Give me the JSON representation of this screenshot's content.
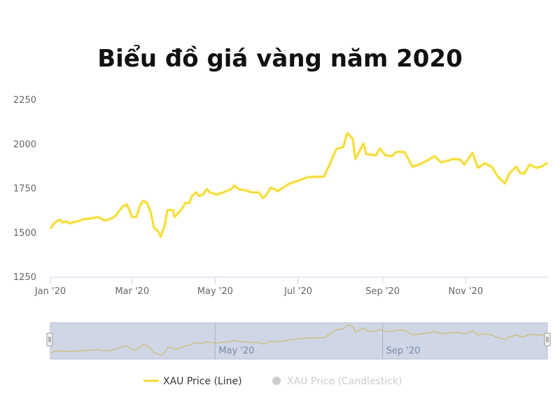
{
  "chart_data": {
    "type": "line",
    "title": "Biểu đồ giá vàng năm 2020",
    "xlabel": "",
    "ylabel": "",
    "xlim": [
      "2020-01-01",
      "2020-12-31"
    ],
    "ylim": [
      1250,
      2250
    ],
    "y_ticks": [
      1250,
      1500,
      1750,
      2000,
      2250
    ],
    "x_ticks": [
      {
        "date": "2020-01-01",
        "label": "Jan '20"
      },
      {
        "date": "2020-03-01",
        "label": "Mar '20"
      },
      {
        "date": "2020-05-01",
        "label": "May '20"
      },
      {
        "date": "2020-07-01",
        "label": "Jul '20"
      },
      {
        "date": "2020-09-01",
        "label": "Sep '20"
      },
      {
        "date": "2020-11-01",
        "label": "Nov '20"
      }
    ],
    "navigator_ticks": [
      {
        "date": "2020-05-01",
        "label": "May '20"
      },
      {
        "date": "2020-09-01",
        "label": "Sep '20"
      }
    ],
    "grid": false,
    "legend_placement": "bottom",
    "series": [
      {
        "name": "XAU Price (Line)",
        "color": "#f2d82e",
        "visible": true,
        "points": [
          [
            "2020-01-01",
            1519
          ],
          [
            "2020-01-04",
            1554
          ],
          [
            "2020-01-08",
            1570
          ],
          [
            "2020-01-10",
            1554
          ],
          [
            "2020-01-13",
            1562
          ],
          [
            "2020-01-15",
            1550
          ],
          [
            "2020-01-21",
            1562
          ],
          [
            "2020-01-26",
            1574
          ],
          [
            "2020-01-31",
            1578
          ],
          [
            "2020-02-05",
            1586
          ],
          [
            "2020-02-10",
            1566
          ],
          [
            "2020-02-15",
            1578
          ],
          [
            "2020-02-18",
            1594
          ],
          [
            "2020-02-23",
            1645
          ],
          [
            "2020-02-26",
            1657
          ],
          [
            "2020-02-28",
            1625
          ],
          [
            "2020-03-01",
            1586
          ],
          [
            "2020-03-04",
            1586
          ],
          [
            "2020-03-07",
            1653
          ],
          [
            "2020-03-09",
            1677
          ],
          [
            "2020-03-12",
            1665
          ],
          [
            "2020-03-15",
            1605
          ],
          [
            "2020-03-17",
            1527
          ],
          [
            "2020-03-20",
            1507
          ],
          [
            "2020-03-22",
            1475
          ],
          [
            "2020-03-25",
            1538
          ],
          [
            "2020-03-27",
            1625
          ],
          [
            "2020-03-31",
            1625
          ],
          [
            "2020-04-01",
            1586
          ],
          [
            "2020-04-06",
            1625
          ],
          [
            "2020-04-09",
            1665
          ],
          [
            "2020-04-12",
            1665
          ],
          [
            "2020-04-14",
            1705
          ],
          [
            "2020-04-17",
            1725
          ],
          [
            "2020-04-19",
            1705
          ],
          [
            "2020-04-22",
            1712
          ],
          [
            "2020-04-25",
            1744
          ],
          [
            "2020-04-27",
            1725
          ],
          [
            "2020-05-02",
            1712
          ],
          [
            "2020-05-07",
            1725
          ],
          [
            "2020-05-13",
            1744
          ],
          [
            "2020-05-15",
            1764
          ],
          [
            "2020-05-18",
            1744
          ],
          [
            "2020-05-23",
            1736
          ],
          [
            "2020-05-28",
            1725
          ],
          [
            "2020-06-02",
            1725
          ],
          [
            "2020-06-05",
            1693
          ],
          [
            "2020-06-07",
            1705
          ],
          [
            "2020-06-11",
            1752
          ],
          [
            "2020-06-16",
            1732
          ],
          [
            "2020-06-24",
            1772
          ],
          [
            "2020-07-08",
            1811
          ],
          [
            "2020-07-20",
            1815
          ],
          [
            "2020-07-24",
            1882
          ],
          [
            "2020-07-29",
            1969
          ],
          [
            "2020-08-03",
            1981
          ],
          [
            "2020-08-06",
            2060
          ],
          [
            "2020-08-10",
            2028
          ],
          [
            "2020-08-12",
            1914
          ],
          [
            "2020-08-18",
            2001
          ],
          [
            "2020-08-20",
            1942
          ],
          [
            "2020-08-27",
            1934
          ],
          [
            "2020-08-30",
            1973
          ],
          [
            "2020-09-03",
            1934
          ],
          [
            "2020-09-08",
            1930
          ],
          [
            "2020-09-11",
            1953
          ],
          [
            "2020-09-17",
            1953
          ],
          [
            "2020-09-23",
            1870
          ],
          [
            "2020-09-28",
            1882
          ],
          [
            "2020-10-05",
            1910
          ],
          [
            "2020-10-09",
            1930
          ],
          [
            "2020-10-14",
            1894
          ],
          [
            "2020-10-23",
            1914
          ],
          [
            "2020-10-28",
            1910
          ],
          [
            "2020-10-31",
            1882
          ],
          [
            "2020-11-06",
            1949
          ],
          [
            "2020-11-10",
            1863
          ],
          [
            "2020-11-15",
            1890
          ],
          [
            "2020-11-20",
            1870
          ],
          [
            "2020-11-25",
            1811
          ],
          [
            "2020-11-30",
            1776
          ],
          [
            "2020-12-03",
            1831
          ],
          [
            "2020-12-08",
            1870
          ],
          [
            "2020-12-11",
            1835
          ],
          [
            "2020-12-14",
            1831
          ],
          [
            "2020-12-18",
            1882
          ],
          [
            "2020-12-23",
            1863
          ],
          [
            "2020-12-28",
            1875
          ],
          [
            "2020-12-31",
            1894
          ]
        ]
      },
      {
        "name": "XAU Price (Candlestick)",
        "color": "#cccccc",
        "visible": false,
        "points": []
      }
    ]
  }
}
